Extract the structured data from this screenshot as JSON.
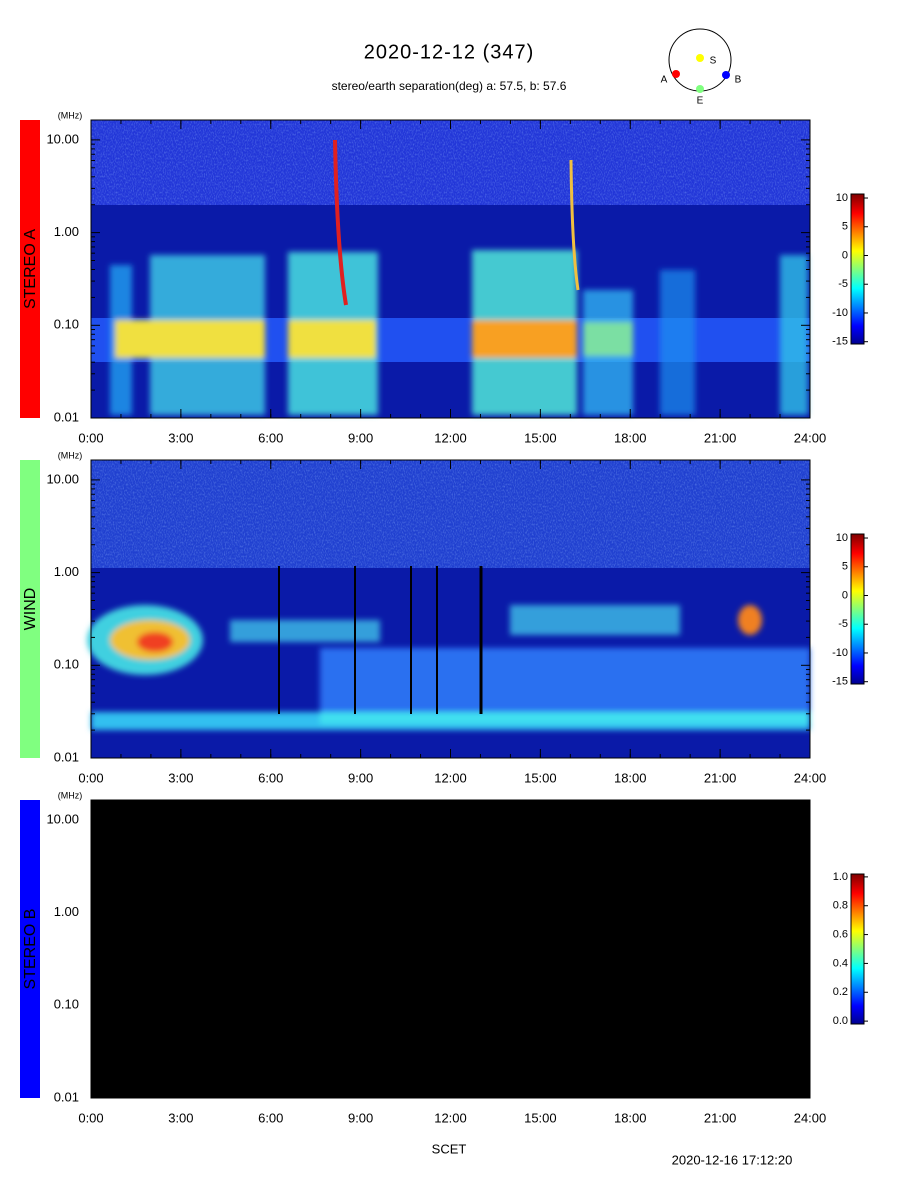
{
  "title": "2020-12-12 (347)",
  "subtitle": "stereo/earth separation(deg) a:  57.5, b:  57.6",
  "orbit": [
    {
      "label": "A",
      "color": "#ff0000"
    },
    {
      "label": "S",
      "color": "#ffff00"
    },
    {
      "label": "B",
      "color": "#0000ff"
    },
    {
      "label": "E",
      "color": "#80ff80"
    }
  ],
  "x_label": "SCET",
  "footer": "2020-12-16 17:12:20",
  "chart_data": [
    {
      "type": "spectrogram",
      "name": "STEREO A",
      "color": "#ff0000",
      "label_color": "#ffa0a0",
      "y_unit": "(MHz)",
      "log_y": true,
      "xlim": [
        0,
        24
      ],
      "xticks": [
        {
          "value": 0,
          "label": "0:00"
        },
        {
          "value": 3,
          "label": "3:00"
        },
        {
          "value": 6,
          "label": "6:00"
        },
        {
          "value": 9,
          "label": "9:00"
        },
        {
          "value": 12,
          "label": "12:00"
        },
        {
          "value": 15,
          "label": "15:00"
        },
        {
          "value": 18,
          "label": "18:00"
        },
        {
          "value": 21,
          "label": "21:00"
        },
        {
          "value": 24,
          "label": "24:00"
        }
      ],
      "ylim": [
        0.01,
        16.4
      ],
      "yticks": [
        {
          "value": 0.01,
          "label": "0.01"
        },
        {
          "value": 0.1,
          "label": "0.10"
        },
        {
          "value": 1,
          "label": "1.00"
        },
        {
          "value": 10,
          "label": "10.00"
        }
      ],
      "colorbar": {
        "clim": [
          -15.4,
          10.7
        ],
        "ticks": [
          10,
          5,
          0,
          -5,
          -10,
          -15
        ]
      }
    },
    {
      "type": "spectrogram",
      "name": "WIND",
      "color": "#80ff80",
      "label_color": "#d0ffd0",
      "y_unit": "(MHz)",
      "log_y": true,
      "xlim": [
        0,
        24
      ],
      "xticks": [
        {
          "value": 0,
          "label": "0:00"
        },
        {
          "value": 3,
          "label": "3:00"
        },
        {
          "value": 6,
          "label": "6:00"
        },
        {
          "value": 9,
          "label": "9:00"
        },
        {
          "value": 12,
          "label": "12:00"
        },
        {
          "value": 15,
          "label": "15:00"
        },
        {
          "value": 18,
          "label": "18:00"
        },
        {
          "value": 21,
          "label": "21:00"
        },
        {
          "value": 24,
          "label": "24:00"
        }
      ],
      "ylim": [
        0.01,
        16.4
      ],
      "yticks": [
        {
          "value": 0.01,
          "label": "0.01"
        },
        {
          "value": 0.1,
          "label": "0.10"
        },
        {
          "value": 1,
          "label": "1.00"
        },
        {
          "value": 10,
          "label": "10.00"
        }
      ],
      "colorbar": {
        "clim": [
          -15.4,
          10.7
        ],
        "ticks": [
          10,
          5,
          0,
          -5,
          -10,
          -15
        ]
      }
    },
    {
      "type": "spectrogram",
      "name": "STEREO B",
      "color": "#0000ff",
      "label_color": "#a0a0ff",
      "y_unit": "(MHz)",
      "log_y": true,
      "xlim": [
        0,
        24
      ],
      "xticks": [
        {
          "value": 0,
          "label": "0:00"
        },
        {
          "value": 3,
          "label": "3:00"
        },
        {
          "value": 6,
          "label": "6:00"
        },
        {
          "value": 9,
          "label": "9:00"
        },
        {
          "value": 12,
          "label": "12:00"
        },
        {
          "value": 15,
          "label": "15:00"
        },
        {
          "value": 18,
          "label": "18:00"
        },
        {
          "value": 21,
          "label": "21:00"
        },
        {
          "value": 24,
          "label": "24:00"
        }
      ],
      "ylim": [
        0.01,
        16.4
      ],
      "yticks": [
        {
          "value": 0.01,
          "label": "0.01"
        },
        {
          "value": 0.1,
          "label": "0.10"
        },
        {
          "value": 1,
          "label": "1.00"
        },
        {
          "value": 10,
          "label": "10.00"
        }
      ],
      "colorbar": {
        "clim": [
          -0.02,
          1.02
        ],
        "ticks": [
          {
            "value": 0,
            "label": "0.0"
          },
          {
            "value": 0.2,
            "label": "0.2"
          },
          {
            "value": 0.4,
            "label": "0.4"
          },
          {
            "value": 0.6,
            "label": "0.6"
          },
          {
            "value": 0.8,
            "label": "0.8"
          },
          {
            "value": 1,
            "label": "1.0"
          }
        ]
      }
    }
  ]
}
